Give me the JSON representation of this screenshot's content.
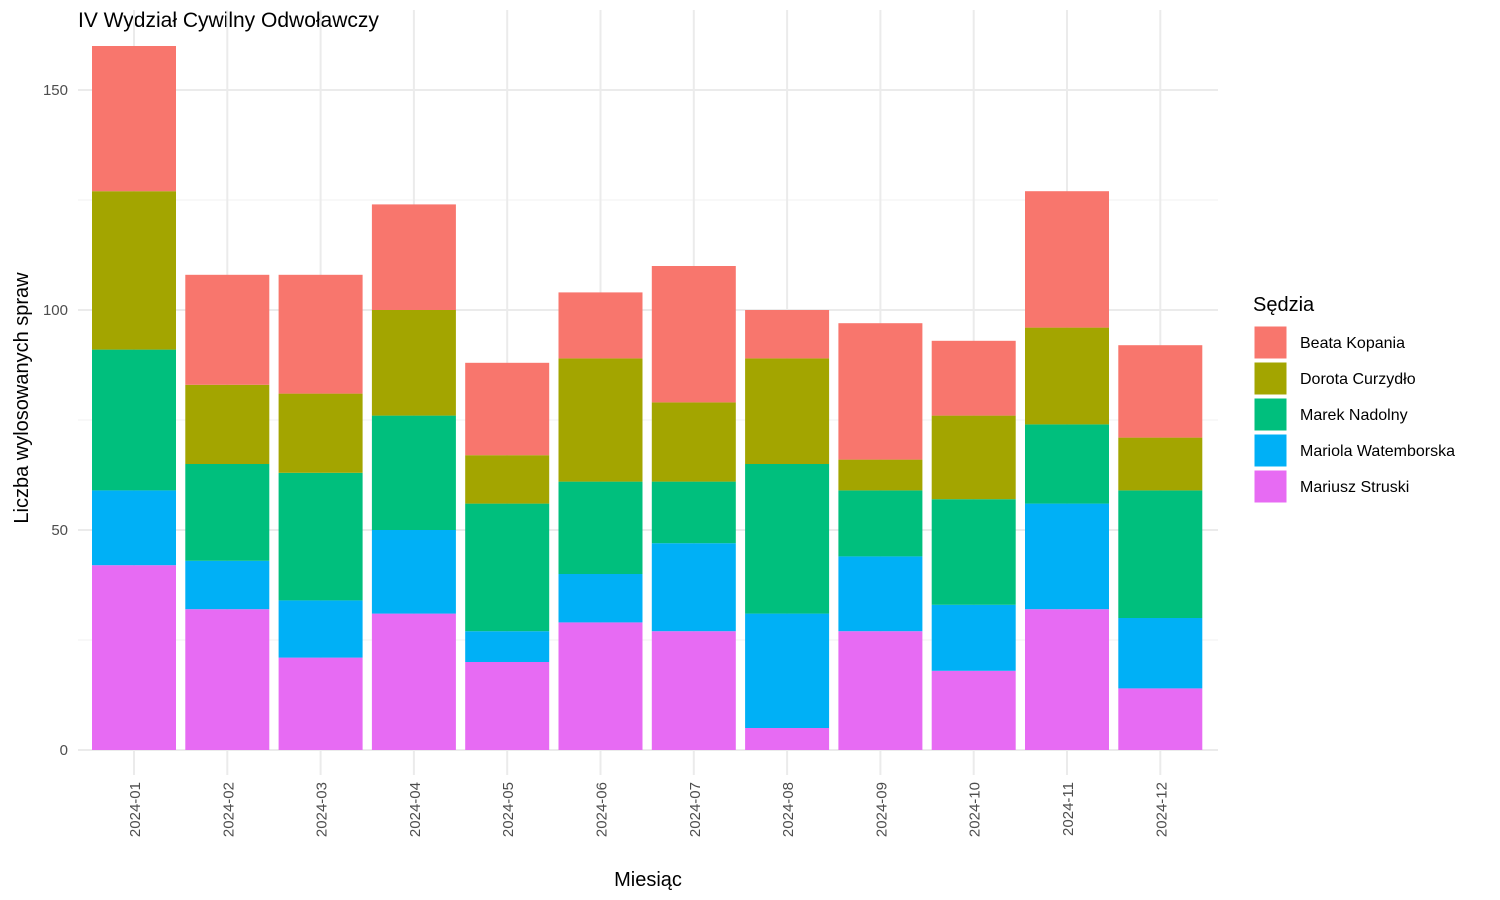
{
  "chart_data": {
    "type": "bar",
    "stacked": true,
    "title": "IV Wydział Cywilny Odwoławczy",
    "xlabel": "Miesiąc",
    "ylabel": "Liczba wylosowanych spraw",
    "ylim": [
      0,
      160
    ],
    "yticks": [
      0,
      50,
      100,
      150
    ],
    "grid": true,
    "legend": {
      "title": "Sędzia",
      "position": "right"
    },
    "categories": [
      "2024-01",
      "2024-02",
      "2024-03",
      "2024-04",
      "2024-05",
      "2024-06",
      "2024-07",
      "2024-08",
      "2024-09",
      "2024-10",
      "2024-11",
      "2024-12"
    ],
    "series": [
      {
        "name": "Mariusz Struski",
        "color": "#E76BF3",
        "values": [
          42,
          32,
          21,
          31,
          20,
          29,
          27,
          5,
          27,
          18,
          32,
          14
        ]
      },
      {
        "name": "Mariola Watemborska",
        "color": "#00B0F6",
        "values": [
          17,
          11,
          13,
          19,
          7,
          11,
          20,
          26,
          17,
          15,
          24,
          16
        ]
      },
      {
        "name": "Marek Nadolny",
        "color": "#00BF7D",
        "values": [
          32,
          22,
          29,
          26,
          29,
          21,
          14,
          34,
          15,
          24,
          18,
          29
        ]
      },
      {
        "name": "Dorota Curzydło",
        "color": "#A3A500",
        "values": [
          36,
          18,
          18,
          24,
          11,
          28,
          18,
          24,
          7,
          19,
          22,
          12
        ]
      },
      {
        "name": "Beata Kopania",
        "color": "#F8766D",
        "values": [
          33,
          25,
          27,
          24,
          21,
          15,
          31,
          11,
          31,
          17,
          31,
          21
        ]
      }
    ],
    "legend_order": [
      "Beata Kopania",
      "Dorota Curzydło",
      "Marek Nadolny",
      "Mariola Watemborska",
      "Mariusz Struski"
    ]
  }
}
